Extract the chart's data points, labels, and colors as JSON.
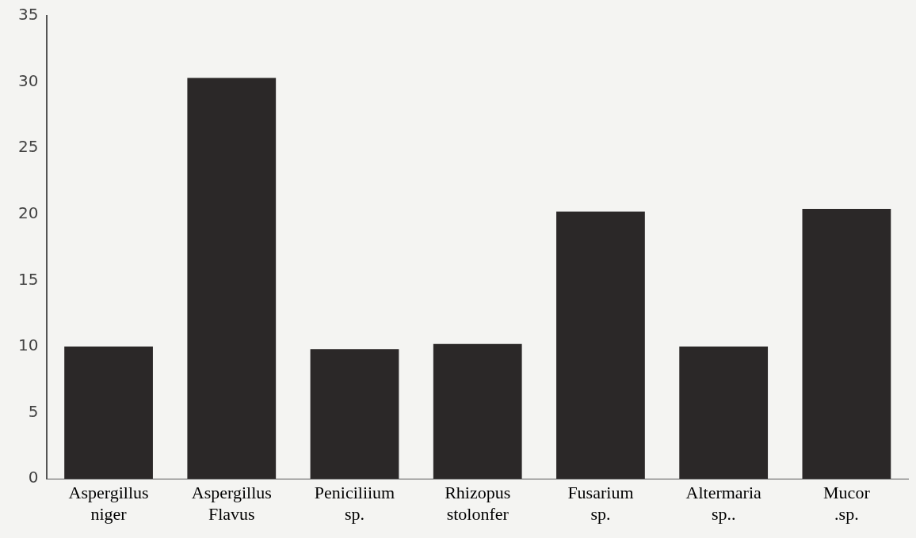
{
  "chart_data": {
    "type": "bar",
    "categories": [
      "Aspergillus niger",
      "Aspergillus Flavus",
      "Peniciliium sp.",
      "Rhizopus stolonfer",
      "Fusarium sp.",
      "Altermaria sp..",
      "Mucor .sp."
    ],
    "values": [
      10,
      30.3,
      9.8,
      10.2,
      20.2,
      10,
      20.4
    ],
    "color": "#2b2828",
    "ylim": [
      0,
      35
    ],
    "yticks": [
      0,
      5,
      10,
      15,
      20,
      25,
      30,
      35
    ],
    "grid": false,
    "legend": false
  }
}
